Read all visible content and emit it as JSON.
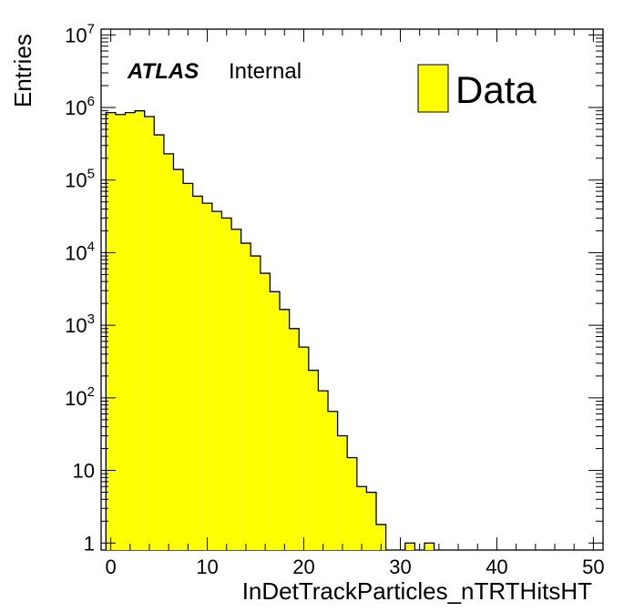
{
  "chart_data": {
    "type": "bar",
    "histogram": true,
    "xlabel": "InDetTrackParticles_nTRTHitsHT",
    "ylabel": "Entries",
    "xlim": [
      -1,
      51
    ],
    "ylim": [
      0.8,
      12000000
    ],
    "log_y": true,
    "bin_width": 1,
    "bin_start": -0.5,
    "x_ticks": [
      0,
      10,
      20,
      30,
      40,
      50
    ],
    "y_ticks": [
      {
        "value": 1,
        "base": "1",
        "exp": ""
      },
      {
        "value": 10,
        "base": "10",
        "exp": ""
      },
      {
        "value": 100,
        "base": "10",
        "exp": "2"
      },
      {
        "value": 1000,
        "base": "10",
        "exp": "3"
      },
      {
        "value": 10000,
        "base": "10",
        "exp": "4"
      },
      {
        "value": 100000,
        "base": "10",
        "exp": "5"
      },
      {
        "value": 1000000,
        "base": "10",
        "exp": "6"
      },
      {
        "value": 10000000,
        "base": "10",
        "exp": "7"
      }
    ],
    "series": [
      {
        "name": "Data",
        "color": "#ffff00",
        "values": [
          850000,
          800000,
          850000,
          900000,
          750000,
          420000,
          230000,
          140000,
          90000,
          60000,
          48000,
          37000,
          30000,
          21000,
          13500,
          9000,
          5200,
          2900,
          1650,
          900,
          500,
          240,
          125,
          65,
          30,
          15,
          6,
          5,
          1.8,
          0.7,
          0.7,
          1,
          0.7,
          1,
          0.7,
          0.7,
          0.7,
          0.7,
          0.7,
          0.7,
          0.7,
          0.7,
          0.7,
          0.7,
          0.7,
          0.7,
          0.7,
          0.7,
          0.7,
          0.7,
          0.7
        ]
      }
    ],
    "legend": {
      "position": "top-right",
      "label": "Data"
    },
    "annotation": {
      "bold": "ATLAS",
      "normal": "Internal"
    },
    "colors": {
      "fill": "#ffff00",
      "line": "#000000"
    }
  }
}
